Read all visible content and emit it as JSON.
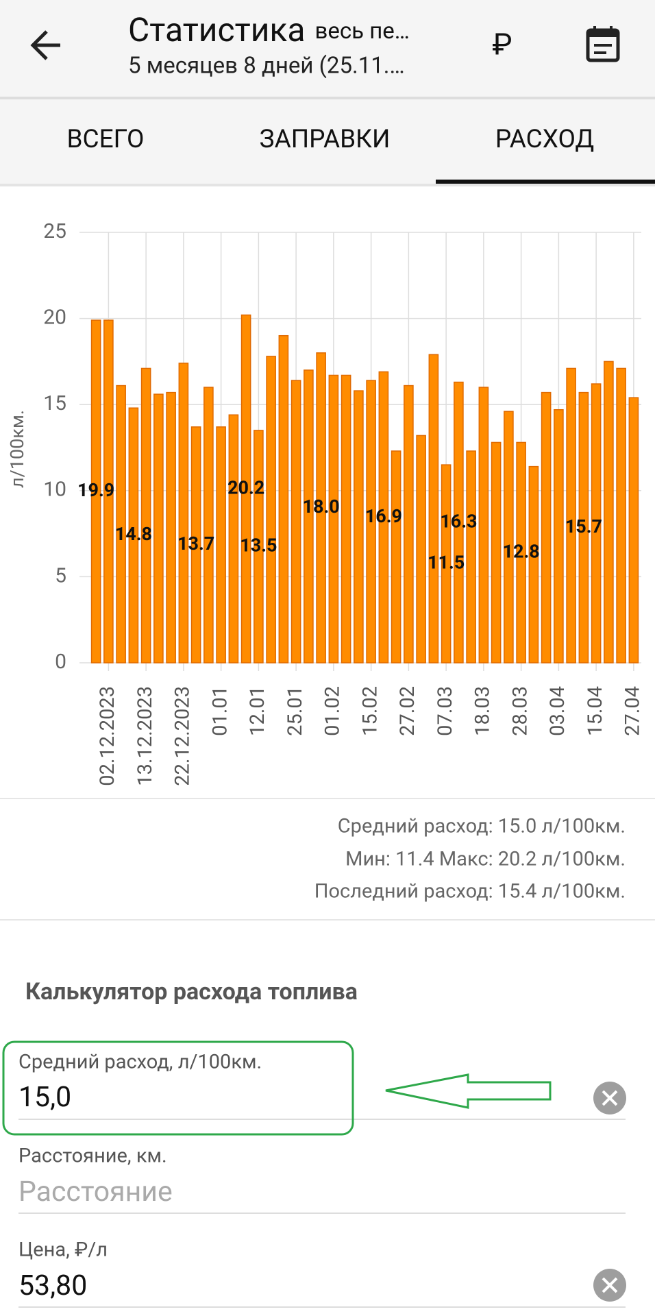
{
  "header": {
    "title": "Статистика",
    "period": "весь пе…",
    "subtitle": "5 месяцев 8 дней (25.11.…",
    "currency": "₽"
  },
  "tabs": [
    "ВСЕГО",
    "ЗАПРАВКИ",
    "РАСХОД"
  ],
  "chart_data": {
    "type": "bar",
    "ylabel": "л/100км.",
    "categories": [
      null,
      "02.12.2023",
      null,
      null,
      "13.12.2023",
      null,
      null,
      "22.12.2023",
      null,
      null,
      "01.01",
      null,
      null,
      "12.01",
      null,
      null,
      "25.01",
      null,
      null,
      "01.02",
      null,
      null,
      "15.02",
      null,
      null,
      "27.02",
      null,
      null,
      "07.03",
      null,
      null,
      "18.03",
      null,
      null,
      "28.03",
      null,
      null,
      "03.04",
      null,
      null,
      "15.04",
      null,
      null,
      "27.04"
    ],
    "values": [
      19.9,
      19.9,
      16.1,
      14.8,
      17.1,
      15.6,
      15.7,
      17.4,
      13.7,
      16.0,
      13.7,
      14.4,
      20.2,
      13.5,
      17.8,
      19.0,
      16.4,
      17.0,
      18.0,
      16.7,
      16.7,
      15.8,
      16.4,
      16.9,
      12.3,
      16.1,
      13.2,
      17.9,
      11.5,
      16.3,
      12.3,
      16.0,
      12.8,
      14.6,
      12.8,
      11.4,
      15.7,
      14.7,
      17.1,
      15.7,
      16.2,
      17.5,
      17.1,
      15.4
    ],
    "value_labels": [
      "19.9",
      null,
      null,
      "14.8",
      null,
      null,
      null,
      null,
      "13.7",
      null,
      null,
      null,
      "20.2",
      "13.5",
      null,
      null,
      null,
      null,
      "18.0",
      null,
      null,
      null,
      null,
      "16.9",
      null,
      null,
      null,
      null,
      "11.5",
      "16.3",
      null,
      null,
      null,
      null,
      "12.8",
      null,
      null,
      null,
      null,
      "15.7",
      null,
      null,
      null,
      null
    ],
    "color": "#ff8c00",
    "ylim": [
      0,
      25
    ],
    "yticks": [
      0,
      5,
      10,
      15,
      20,
      25
    ],
    "grid": true
  },
  "stats": [
    "Средний расход: 15.0 л/100км.",
    "Мин: 11.4 Макс: 20.2 л/100км.",
    "Последний расход: 15.4 л/100км."
  ],
  "calculator": {
    "title": "Калькулятор расхода топлива",
    "fields": [
      {
        "label": "Средний расход, л/100км.",
        "value": "15,0"
      },
      {
        "label": "Расстояние, км.",
        "placeholder": "Расстояние"
      },
      {
        "label": "Цена, ₽/л",
        "value": "53,80"
      }
    ]
  }
}
